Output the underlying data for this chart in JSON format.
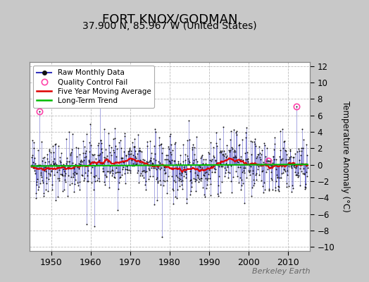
{
  "title": "FORT KNOX/GODMAN",
  "subtitle": "37.900 N, 85.967 W (United States)",
  "ylabel": "Temperature Anomaly (°C)",
  "watermark": "Berkeley Earth",
  "xlim": [
    1944.5,
    2015.5
  ],
  "ylim": [
    -10.5,
    12.5
  ],
  "yticks": [
    -10,
    -8,
    -6,
    -4,
    -2,
    0,
    2,
    4,
    6,
    8,
    10,
    12
  ],
  "xticks": [
    1950,
    1960,
    1970,
    1980,
    1990,
    2000,
    2010
  ],
  "fig_bg_color": "#c8c8c8",
  "plot_bg_color": "#ffffff",
  "grid_color": "#bbbbbb",
  "line_color": "#3333bb",
  "dot_color": "#111111",
  "ma_color": "#dd0000",
  "trend_color": "#00bb00",
  "qc_color": "#ff44aa",
  "title_fontsize": 13,
  "subtitle_fontsize": 10,
  "seed": 42,
  "start_year": 1945,
  "end_year": 2014
}
